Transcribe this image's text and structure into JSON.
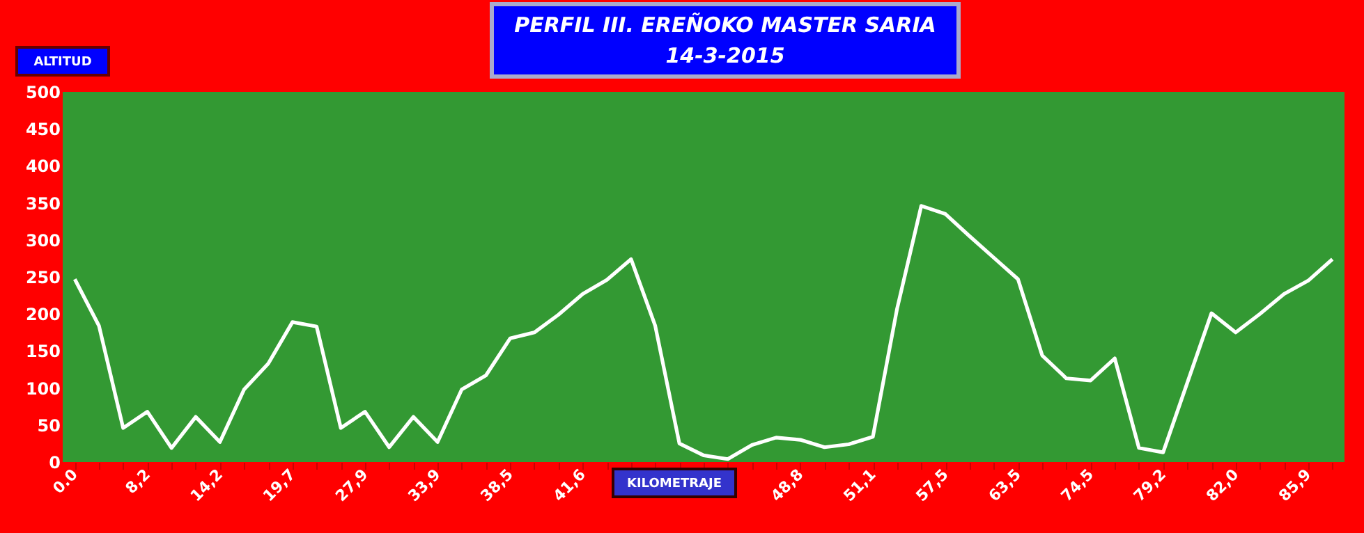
{
  "chart_data": {
    "type": "line",
    "title": "PERFIL III. EREÑOKO MASTER SARIA",
    "subtitle": "14-3-2015",
    "xlabel": "KILOMETRAJE",
    "ylabel": "ALTITUD",
    "categories": [
      "0.0",
      null,
      null,
      "8,2",
      null,
      null,
      "14,2",
      null,
      null,
      "19,7",
      null,
      null,
      "27,9",
      null,
      null,
      "33,9",
      null,
      null,
      "38,5",
      null,
      null,
      "41,6",
      null,
      null,
      null,
      null,
      null,
      null,
      null,
      null,
      "48,8",
      null,
      null,
      "51,1",
      null,
      null,
      "57,5",
      null,
      null,
      "63,5",
      null,
      null,
      "74,5",
      null,
      null,
      "79,2",
      null,
      null,
      "82,0",
      null,
      null,
      "85,9",
      null
    ],
    "series": [
      {
        "color": "#ffffff",
        "values": [
          247,
          184,
          46,
          68,
          19,
          61,
          27,
          98,
          133,
          189,
          183,
          46,
          68,
          20,
          61,
          27,
          98,
          117,
          167,
          175,
          199,
          227,
          246,
          274,
          184,
          25,
          9,
          4,
          23,
          33,
          30,
          20,
          24,
          34,
          207,
          346,
          335,
          305,
          276,
          247,
          144,
          113,
          110,
          140,
          19,
          13,
          107,
          201,
          175,
          200,
          227,
          245,
          274
        ]
      }
    ],
    "ylim": [
      0,
      500
    ],
    "yticks": [
      0,
      50,
      100,
      150,
      200,
      250,
      300,
      350,
      400,
      450,
      500
    ],
    "grid": false,
    "legend": false,
    "marker": "none",
    "line_style": "solid"
  }
}
